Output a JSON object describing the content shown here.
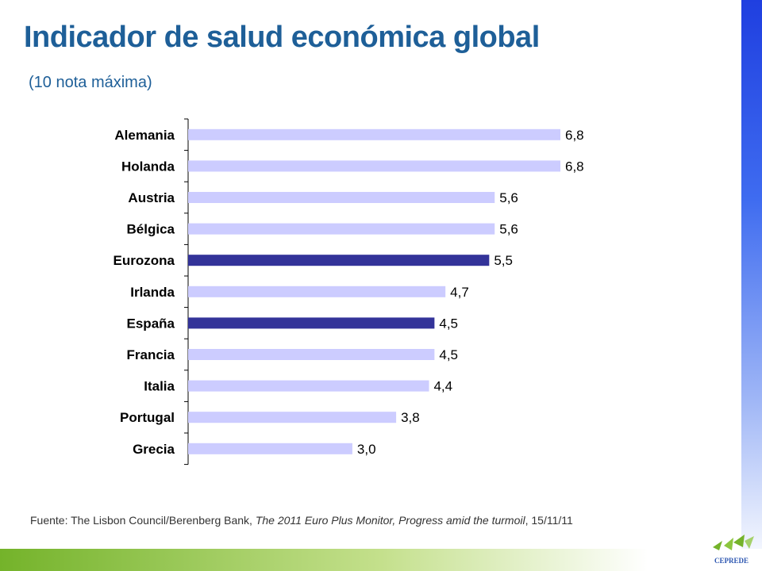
{
  "title": "Indicador de salud económica global",
  "subtitle": "(10 nota máxima)",
  "chart_data": {
    "type": "bar",
    "orientation": "horizontal",
    "categories": [
      "Alemania",
      "Holanda",
      "Austria",
      "Bélgica",
      "Eurozona",
      "Irlanda",
      "España",
      "Francia",
      "Italia",
      "Portugal",
      "Grecia"
    ],
    "values": [
      6.8,
      6.8,
      5.6,
      5.6,
      5.5,
      4.7,
      4.5,
      4.5,
      4.4,
      3.8,
      3.0
    ],
    "value_labels": [
      "6,8",
      "6,8",
      "5,6",
      "5,6",
      "5,5",
      "4,7",
      "4,5",
      "4,5",
      "4,4",
      "3,8",
      "3,0"
    ],
    "highlighted": [
      "Eurozona",
      "España"
    ],
    "colors": {
      "default": "#ccccff",
      "highlight": "#333399"
    },
    "xlim": [
      0,
      6.8
    ],
    "grid": false
  },
  "footnote": {
    "prefix": "Fuente: The Lisbon Council/Berenberg Bank, ",
    "italic": "The 2011 Euro Plus Monitor, Progress amid the turmoil",
    "suffix": ", 15/11/11"
  },
  "logo": {
    "text": "CEPREDE"
  },
  "colors": {
    "title": "#1e5f98",
    "right_band": "#1f3fe0",
    "bottom_band": "#74b32a"
  }
}
